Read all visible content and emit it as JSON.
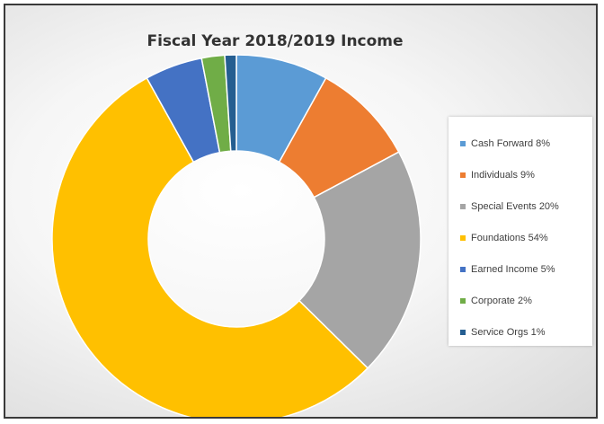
{
  "chart_data": {
    "type": "pie",
    "title": "Fiscal Year 2018/2019 Income",
    "donut": true,
    "legend_position": "right",
    "categories": [
      "Cash Forward",
      "Individuals",
      "Special Events",
      "Foundations",
      "Earned Income",
      "Corporate",
      "Service Orgs"
    ],
    "values": [
      8,
      9,
      20,
      54,
      5,
      2,
      1
    ],
    "unit": "%",
    "legend_labels": [
      "Cash Forward 8%",
      "Individuals 9%",
      "Special Events 20%",
      "Foundations 54%",
      "Earned Income 5%",
      "Corporate 2%",
      "Service Orgs 1%"
    ],
    "colors": [
      "#5b9bd5",
      "#ed7d31",
      "#a5a5a5",
      "#ffc000",
      "#4472c4",
      "#70ad47",
      "#255e91"
    ]
  }
}
